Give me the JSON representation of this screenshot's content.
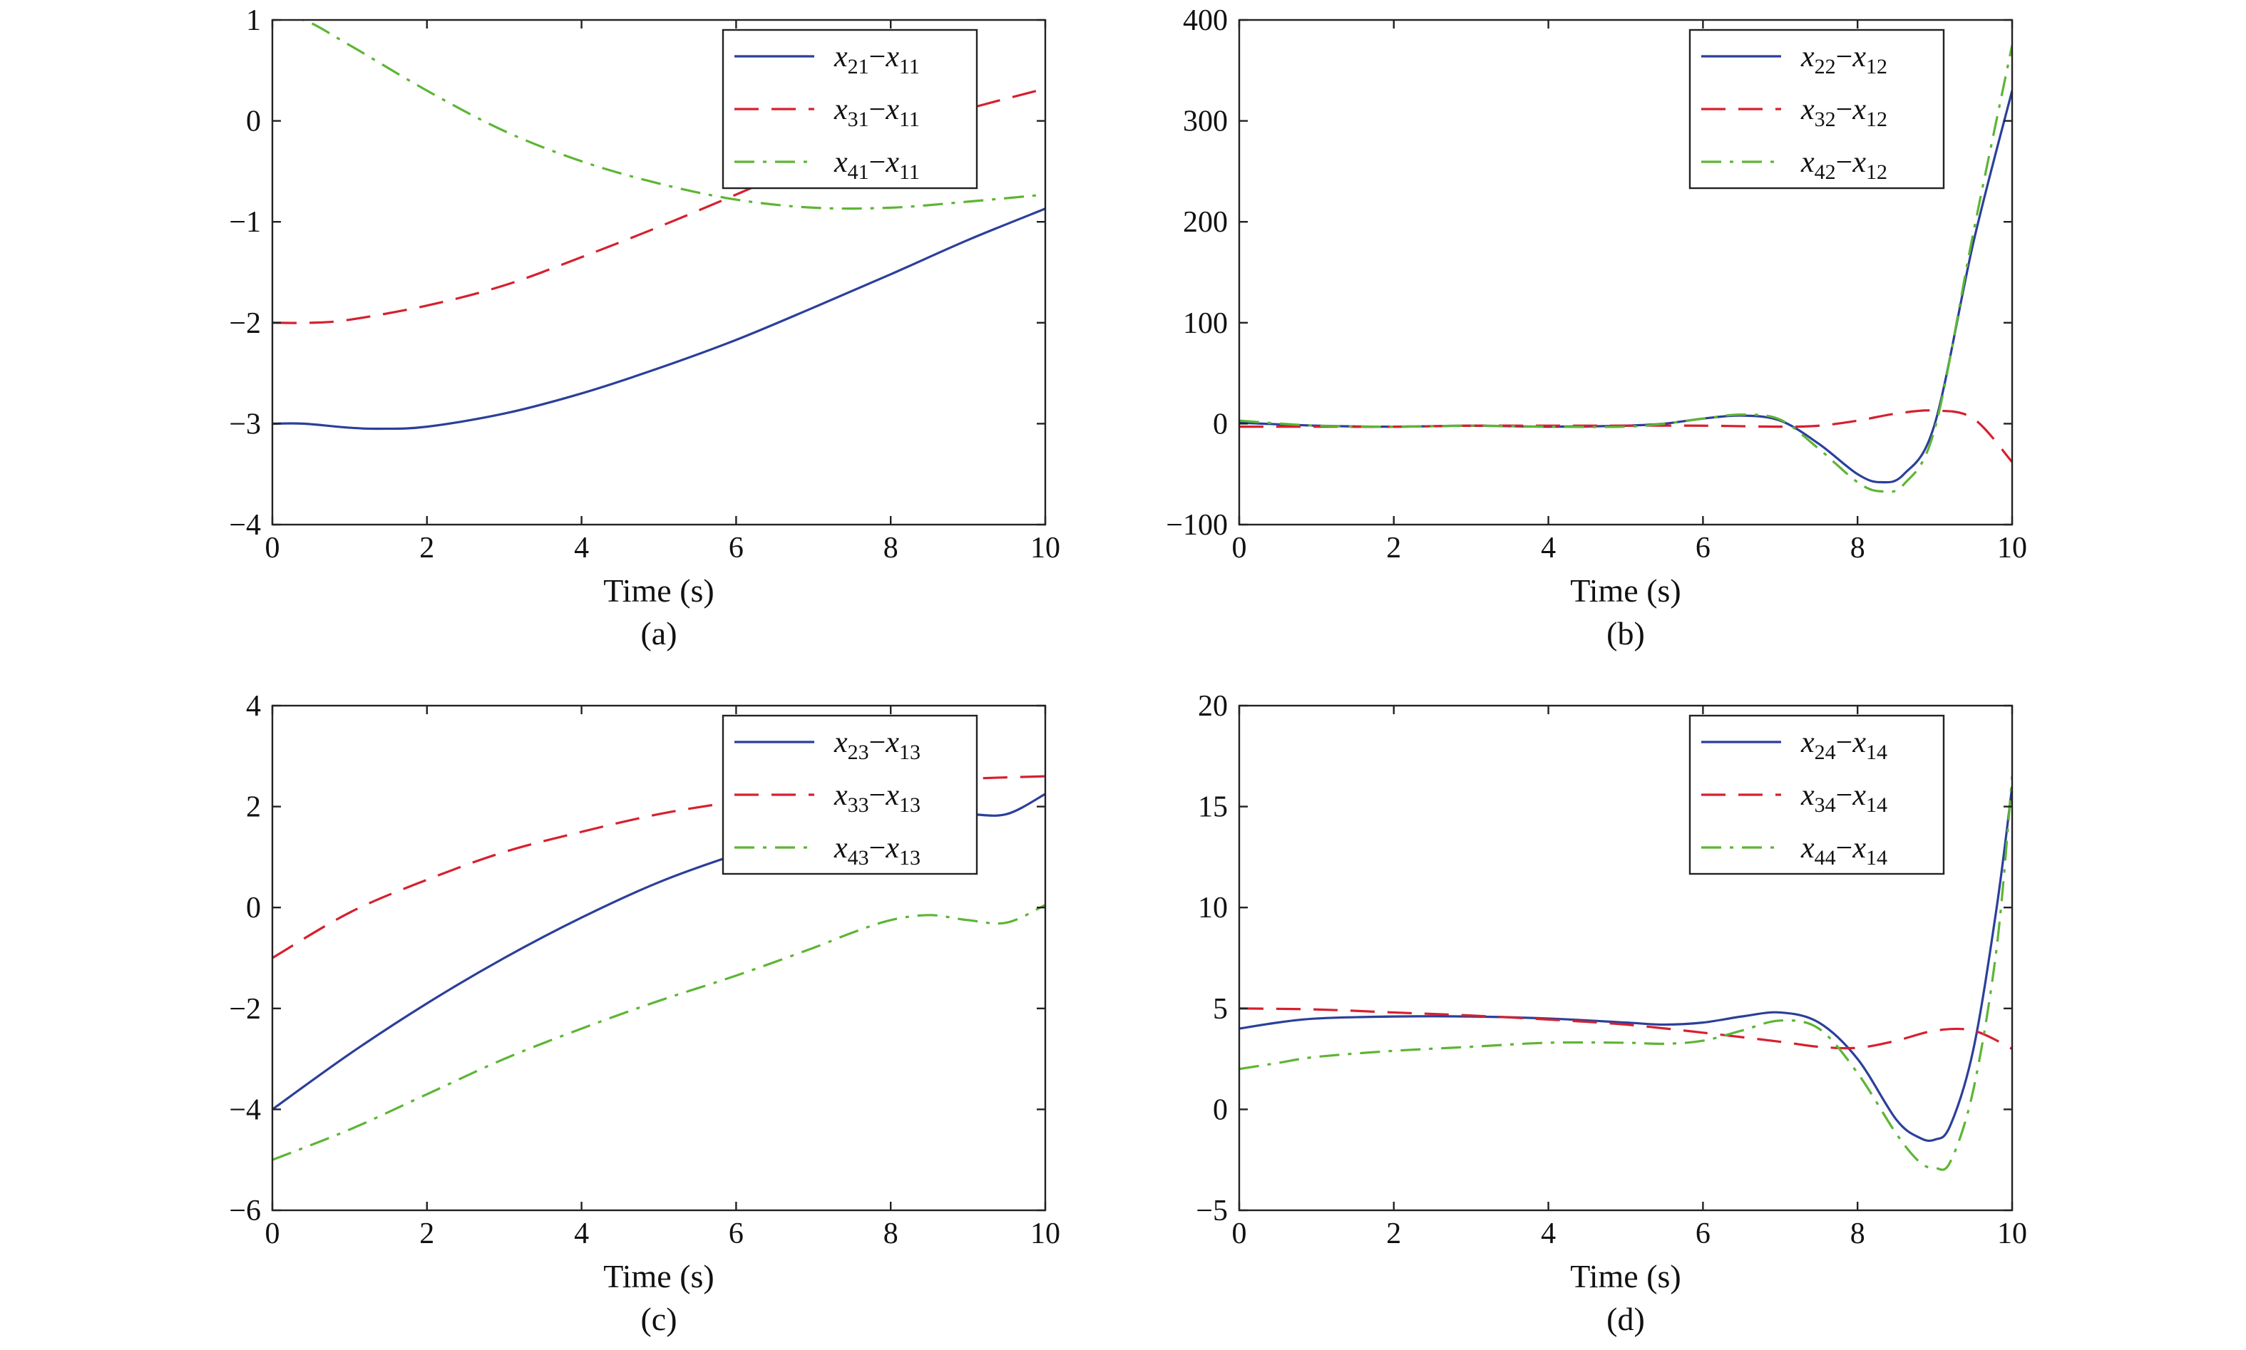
{
  "figure": {
    "colors": {
      "blue": "#2b3f9a",
      "red": "#d6202e",
      "green": "#5db534",
      "axis": "#222222"
    }
  },
  "chart_data": [
    {
      "id": "a",
      "type": "line",
      "caption": "(a)",
      "xlabel": "Time (s)",
      "ylabel": "",
      "xlim": [
        0,
        10
      ],
      "ylim": [
        -4,
        1
      ],
      "xticks": [
        0,
        2,
        4,
        6,
        8,
        10
      ],
      "xtick_labels": [
        "0",
        "2",
        "4",
        "6",
        "8",
        "10"
      ],
      "yticks": [
        -4,
        -3,
        -2,
        -1,
        0,
        1
      ],
      "ytick_labels": [
        "−4",
        "−3",
        "−2",
        "−1",
        "0",
        "1"
      ],
      "legend_position": "top-right",
      "grid": false,
      "series": [
        {
          "name": "x21−x11",
          "legend": {
            "a": "x",
            "as": "21",
            "b": "x",
            "bs": "11"
          },
          "style": "solid",
          "color": "#2b3f9a",
          "x": [
            0,
            0.4,
            1,
            1.4,
            2,
            3,
            4,
            5,
            6,
            7,
            8,
            9,
            10
          ],
          "y": [
            -3.0,
            -3.0,
            -3.04,
            -3.05,
            -3.03,
            -2.9,
            -2.7,
            -2.45,
            -2.17,
            -1.85,
            -1.52,
            -1.18,
            -0.87
          ]
        },
        {
          "name": "x31−x11",
          "legend": {
            "a": "x",
            "as": "31",
            "b": "x",
            "bs": "11"
          },
          "style": "dashed",
          "color": "#d6202e",
          "x": [
            0,
            0.5,
            1,
            2,
            3,
            4,
            5,
            6,
            7,
            8,
            9,
            10
          ],
          "y": [
            -2.0,
            -2.0,
            -1.97,
            -1.83,
            -1.63,
            -1.35,
            -1.05,
            -0.73,
            -0.4,
            -0.1,
            0.12,
            0.32
          ]
        },
        {
          "name": "x41−x11",
          "legend": {
            "a": "x",
            "as": "41",
            "b": "x",
            "bs": "11"
          },
          "style": "dashdot",
          "color": "#5db534",
          "x": [
            0,
            0.4,
            1,
            2,
            3,
            4,
            5,
            6,
            7,
            8,
            9,
            10
          ],
          "y": [
            1.0,
            1.0,
            0.75,
            0.3,
            -0.1,
            -0.4,
            -0.62,
            -0.78,
            -0.86,
            -0.86,
            -0.8,
            -0.73
          ]
        }
      ]
    },
    {
      "id": "b",
      "type": "line",
      "caption": "(b)",
      "xlabel": "Time (s)",
      "ylabel": "",
      "xlim": [
        0,
        10
      ],
      "ylim": [
        -100,
        400
      ],
      "xticks": [
        0,
        2,
        4,
        6,
        8,
        10
      ],
      "xtick_labels": [
        "0",
        "2",
        "4",
        "6",
        "8",
        "10"
      ],
      "yticks": [
        -100,
        0,
        100,
        200,
        300,
        400
      ],
      "ytick_labels": [
        "−100",
        "0",
        "100",
        "200",
        "300",
        "400"
      ],
      "legend_position": "top-right",
      "grid": false,
      "series": [
        {
          "name": "x22−x12",
          "legend": {
            "a": "x",
            "as": "22",
            "b": "x",
            "bs": "12"
          },
          "style": "solid",
          "color": "#2b3f9a",
          "x": [
            0,
            1,
            2,
            3,
            4,
            5,
            5.5,
            6,
            6.5,
            7,
            7.5,
            8,
            8.3,
            8.6,
            9,
            9.5,
            10
          ],
          "y": [
            1,
            -2,
            -3,
            -2,
            -3,
            -2,
            0,
            5,
            8,
            3,
            -20,
            -50,
            -58,
            -50,
            0,
            180,
            330
          ]
        },
        {
          "name": "x32−x12",
          "legend": {
            "a": "x",
            "as": "32",
            "b": "x",
            "bs": "12"
          },
          "style": "dashed",
          "color": "#d6202e",
          "x": [
            0,
            1,
            2,
            3,
            4,
            5,
            6,
            7,
            7.5,
            8,
            8.5,
            9,
            9.5,
            10
          ],
          "y": [
            -3,
            -3,
            -3,
            -2,
            -2,
            -2,
            -2,
            -3,
            -2,
            3,
            10,
            13,
            5,
            -38
          ]
        },
        {
          "name": "x42−x12",
          "legend": {
            "a": "x",
            "as": "42",
            "b": "x",
            "bs": "12"
          },
          "style": "dashdot",
          "color": "#5db534",
          "x": [
            0,
            1,
            2,
            3,
            4,
            5,
            5.5,
            6,
            6.5,
            7,
            7.5,
            8,
            8.3,
            8.6,
            9,
            9.5,
            10
          ],
          "y": [
            3,
            -2,
            -3,
            -2,
            -3,
            -3,
            0,
            5,
            9,
            4,
            -25,
            -58,
            -67,
            -60,
            -5,
            190,
            375
          ]
        }
      ]
    },
    {
      "id": "c",
      "type": "line",
      "caption": "(c)",
      "xlabel": "Time (s)",
      "ylabel": "",
      "xlim": [
        0,
        10
      ],
      "ylim": [
        -6,
        4
      ],
      "xticks": [
        0,
        2,
        4,
        6,
        8,
        10
      ],
      "xtick_labels": [
        "0",
        "2",
        "4",
        "6",
        "8",
        "10"
      ],
      "yticks": [
        -6,
        -4,
        -2,
        0,
        2,
        4
      ],
      "ytick_labels": [
        "−6",
        "−4",
        "−2",
        "0",
        "2",
        "4"
      ],
      "legend_position": "top-right",
      "grid": false,
      "series": [
        {
          "name": "x23−x13",
          "legend": {
            "a": "x",
            "as": "23",
            "b": "x",
            "bs": "13"
          },
          "style": "solid",
          "color": "#2b3f9a",
          "x": [
            0,
            1,
            2,
            3,
            4,
            5,
            6,
            7,
            8,
            8.5,
            9,
            9.5,
            10
          ],
          "y": [
            -4.0,
            -2.9,
            -1.9,
            -1.0,
            -0.2,
            0.5,
            1.05,
            1.5,
            1.8,
            1.85,
            1.85,
            1.85,
            2.25
          ]
        },
        {
          "name": "x33−x13",
          "legend": {
            "a": "x",
            "as": "33",
            "b": "x",
            "bs": "13"
          },
          "style": "dashed",
          "color": "#d6202e",
          "x": [
            0,
            1,
            2,
            3,
            4,
            5,
            6,
            7,
            8,
            9,
            10
          ],
          "y": [
            -1.0,
            -0.1,
            0.55,
            1.1,
            1.5,
            1.85,
            2.1,
            2.3,
            2.45,
            2.55,
            2.6
          ]
        },
        {
          "name": "x43−x13",
          "legend": {
            "a": "x",
            "as": "43",
            "b": "x",
            "bs": "13"
          },
          "style": "dashdot",
          "color": "#5db534",
          "x": [
            0,
            1,
            2,
            3,
            4,
            5,
            6,
            7,
            7.5,
            8,
            8.5,
            9,
            9.5,
            10
          ],
          "y": [
            -5.0,
            -4.4,
            -3.7,
            -3.0,
            -2.4,
            -1.85,
            -1.35,
            -0.8,
            -0.5,
            -0.25,
            -0.15,
            -0.25,
            -0.3,
            0.05
          ]
        }
      ]
    },
    {
      "id": "d",
      "type": "line",
      "caption": "(d)",
      "xlabel": "Time (s)",
      "ylabel": "",
      "xlim": [
        0,
        10
      ],
      "ylim": [
        -5,
        20
      ],
      "xticks": [
        0,
        2,
        4,
        6,
        8,
        10
      ],
      "xtick_labels": [
        "0",
        "2",
        "4",
        "6",
        "8",
        "10"
      ],
      "yticks": [
        -5,
        0,
        5,
        10,
        15,
        20
      ],
      "ytick_labels": [
        "−5",
        "0",
        "5",
        "10",
        "15",
        "20"
      ],
      "legend_position": "top-right",
      "grid": false,
      "series": [
        {
          "name": "x24−x14",
          "legend": {
            "a": "x",
            "as": "24",
            "b": "x",
            "bs": "14"
          },
          "style": "solid",
          "color": "#2b3f9a",
          "x": [
            0,
            0.5,
            1,
            2,
            3,
            4,
            5,
            5.5,
            6,
            6.5,
            7,
            7.5,
            8,
            8.5,
            8.8,
            9.0,
            9.2,
            9.5,
            9.8,
            10
          ],
          "y": [
            4.0,
            4.3,
            4.5,
            4.6,
            4.6,
            4.5,
            4.3,
            4.2,
            4.3,
            4.6,
            4.8,
            4.3,
            2.5,
            -0.5,
            -1.4,
            -1.5,
            -0.8,
            3.0,
            10.0,
            16.0
          ]
        },
        {
          "name": "x34−x14",
          "legend": {
            "a": "x",
            "as": "34",
            "b": "x",
            "bs": "14"
          },
          "style": "dashed",
          "color": "#d6202e",
          "x": [
            0,
            1,
            2,
            3,
            4,
            5,
            6,
            7,
            7.5,
            8,
            8.5,
            9,
            9.5,
            10
          ],
          "y": [
            5.0,
            4.95,
            4.8,
            4.65,
            4.45,
            4.2,
            3.8,
            3.35,
            3.1,
            3.05,
            3.4,
            3.9,
            3.9,
            3.0
          ]
        },
        {
          "name": "x44−x14",
          "legend": {
            "a": "x",
            "as": "44",
            "b": "x",
            "bs": "14"
          },
          "style": "dashdot",
          "color": "#5db534",
          "x": [
            0,
            0.5,
            1,
            2,
            3,
            4,
            5,
            5.5,
            6,
            6.5,
            7,
            7.5,
            8,
            8.5,
            8.8,
            9.0,
            9.2,
            9.5,
            9.8,
            10
          ],
          "y": [
            2.0,
            2.3,
            2.6,
            2.9,
            3.1,
            3.3,
            3.3,
            3.25,
            3.4,
            3.9,
            4.4,
            4.0,
            1.8,
            -1.2,
            -2.6,
            -2.9,
            -2.6,
            1.0,
            8.0,
            16.5
          ]
        }
      ]
    }
  ]
}
